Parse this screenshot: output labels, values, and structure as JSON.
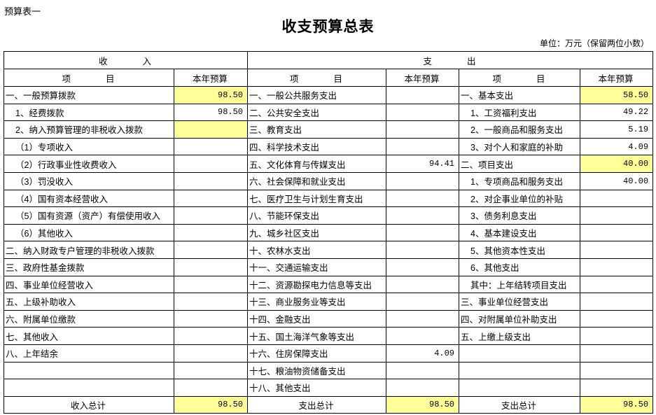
{
  "sheet_label": "预算表一",
  "title": "收支预算总表",
  "unit": "单位：万元（保留两位小数）",
  "colors": {
    "highlight": "#ffff99"
  },
  "header": {
    "income": "收　　　　入",
    "expense": "支　　　　出",
    "item": "项　　　　目",
    "budget": "本年预算"
  },
  "rows": [
    {
      "in_item": "一、一般预算拨款",
      "in_val": "98.50",
      "in_hl": true,
      "ex1_item": "一、一般公共服务支出",
      "ex1_val": "",
      "ex2_item": "一、基本支出",
      "ex2_val": "58.50",
      "ex2_hl": true
    },
    {
      "in_item": "1、经费拨款",
      "in_val": "98.50",
      "ex1_item": "二、公共安全支出",
      "ex1_val": "",
      "ex2_item": "1、工资福利支出",
      "ex2_val": "49.22"
    },
    {
      "in_item": "2、纳入预算管理的非税收入拨款",
      "in_val": "",
      "in_hl": true,
      "ex1_item": "三、教育支出",
      "ex1_val": "",
      "ex2_item": "2、一般商品和服务支出",
      "ex2_val": "5.19"
    },
    {
      "in_item": "（1）专项收入",
      "in_val": "",
      "ex1_item": "四、科学技术支出",
      "ex1_val": "",
      "ex2_item": "3、对个人和家庭的补助",
      "ex2_val": "4.09"
    },
    {
      "in_item": "（2）行政事业性收费收入",
      "in_val": "",
      "ex1_item": "五、文化体育与传媒支出",
      "ex1_val": "94.41",
      "ex2_item": "二、项目支出",
      "ex2_val": "40.00",
      "ex2_hl": true
    },
    {
      "in_item": "（3）罚没收入",
      "in_val": "",
      "ex1_item": "六、社会保障和就业支出",
      "ex1_val": "",
      "ex2_item": "1、专项商品和服务支出",
      "ex2_val": "40.00"
    },
    {
      "in_item": "（4）国有资本经营收入",
      "in_val": "",
      "ex1_item": "七、医疗卫生与计划生育支出",
      "ex1_val": "",
      "ex2_item": "2、对企事业单位的补贴",
      "ex2_val": ""
    },
    {
      "in_item": "（5）国有资源（资产）有偿使用收入",
      "in_val": "",
      "ex1_item": "八、节能环保支出",
      "ex1_val": "",
      "ex2_item": "3、债务利息支出",
      "ex2_val": ""
    },
    {
      "in_item": "（6）其他收入",
      "in_val": "",
      "ex1_item": "九、城乡社区支出",
      "ex1_val": "",
      "ex2_item": "4、基本建设支出",
      "ex2_val": ""
    },
    {
      "in_item": "二、纳入财政专户管理的非税收入拨款",
      "in_val": "",
      "ex1_item": "十、农林水支出",
      "ex1_val": "",
      "ex2_item": "5、其他资本性支出",
      "ex2_val": ""
    },
    {
      "in_item": "三、政府性基金拨款",
      "in_val": "",
      "ex1_item": "十一、交通运输支出",
      "ex1_val": "",
      "ex2_item": "6、其他支出",
      "ex2_val": ""
    },
    {
      "in_item": "四、事业单位经营收入",
      "in_val": "",
      "ex1_item": "十二、资源勘探电力信息等支出",
      "ex1_val": "",
      "ex2_item": "其中：上年结转项目支出",
      "ex2_val": ""
    },
    {
      "in_item": "五、上级补助收入",
      "in_val": "",
      "ex1_item": "十三、商业服务业等支出",
      "ex1_val": "",
      "ex2_item": "三、事业单位经营支出",
      "ex2_val": ""
    },
    {
      "in_item": "六、附属单位缴款",
      "in_val": "",
      "ex1_item": "十四、金融支出",
      "ex1_val": "",
      "ex2_item": "四、对附属单位补助支出",
      "ex2_val": ""
    },
    {
      "in_item": "七、其他收入",
      "in_val": "",
      "ex1_item": "十五、国土海洋气象等支出",
      "ex1_val": "",
      "ex2_item": "五、上缴上级支出",
      "ex2_val": ""
    },
    {
      "in_item": "八、上年结余",
      "in_val": "",
      "ex1_item": "十六、住房保障支出",
      "ex1_val": "4.09",
      "ex2_item": "",
      "ex2_val": ""
    },
    {
      "in_item": "",
      "in_val": "",
      "ex1_item": "十七、粮油物资储备支出",
      "ex1_val": "",
      "ex2_item": "",
      "ex2_val": ""
    },
    {
      "in_item": "",
      "in_val": "",
      "ex1_item": "十八、其他支出",
      "ex1_val": "",
      "ex2_item": "",
      "ex2_val": ""
    }
  ],
  "totals": {
    "income_label": "收入总计",
    "income_val": "98.50",
    "expense1_label": "支出总计",
    "expense1_val": "98.50",
    "expense2_label": "支出总计",
    "expense2_val": "98.50"
  }
}
